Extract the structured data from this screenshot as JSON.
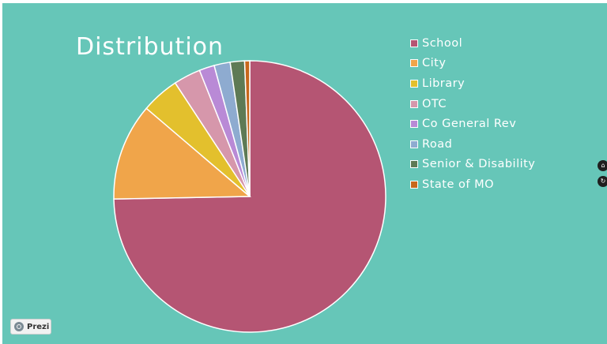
{
  "chart_data": {
    "type": "pie",
    "title": "Distribution",
    "categories": [
      "School",
      "City",
      "Library",
      "OTC",
      "Co General Rev",
      "Road",
      "Senior & Disability",
      "State of MO"
    ],
    "values": [
      74.4,
      11.5,
      4.5,
      3.2,
      1.8,
      1.9,
      1.7,
      0.6
    ],
    "colors": [
      "#b55573",
      "#f0a54a",
      "#e3c02d",
      "#d697ab",
      "#b98ad6",
      "#8eabd0",
      "#5e7a55",
      "#c8671c"
    ],
    "legend": "right",
    "start_angle_deg": 0,
    "direction": "clockwise"
  },
  "controls": {
    "home_icon": "home-icon",
    "reset_icon": "reset-icon",
    "home_glyph": "⌂",
    "reset_glyph": "↻"
  },
  "branding": {
    "label": "Prezi",
    "icon": "prezi-globe-icon"
  }
}
